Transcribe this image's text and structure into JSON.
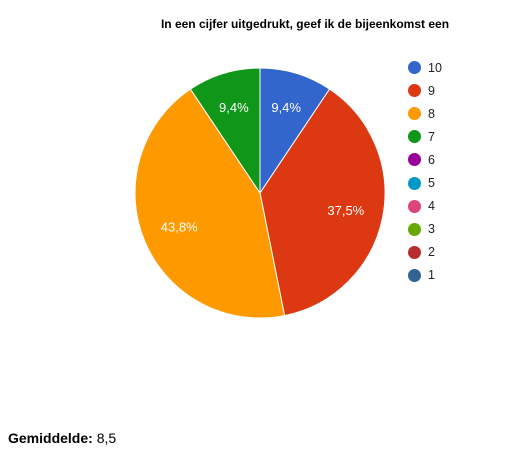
{
  "chart_data": {
    "type": "pie",
    "title": "In een cijfer uitgedrukt, geef ik de bijeenkomst een",
    "slices": [
      {
        "label": "10",
        "value": 9.4,
        "display": "9,4%",
        "color": "#3366cc"
      },
      {
        "label": "9",
        "value": 37.5,
        "display": "37,5%",
        "color": "#dc3912"
      },
      {
        "label": "8",
        "value": 43.8,
        "display": "43,8%",
        "color": "#ff9900"
      },
      {
        "label": "7",
        "value": 9.4,
        "display": "9,4%",
        "color": "#109618"
      }
    ],
    "legend": [
      {
        "label": "10",
        "color": "#3366cc"
      },
      {
        "label": "9",
        "color": "#dc3912"
      },
      {
        "label": "8",
        "color": "#ff9900"
      },
      {
        "label": "7",
        "color": "#109618"
      },
      {
        "label": "6",
        "color": "#990099"
      },
      {
        "label": "5",
        "color": "#0099c6"
      },
      {
        "label": "4",
        "color": "#dd4477"
      },
      {
        "label": "3",
        "color": "#66aa00"
      },
      {
        "label": "2",
        "color": "#b82e2e"
      },
      {
        "label": "1",
        "color": "#316395"
      }
    ],
    "legend_position": "right"
  },
  "summary": {
    "average_label": "Gemiddelde:",
    "average_value": "8,5"
  }
}
